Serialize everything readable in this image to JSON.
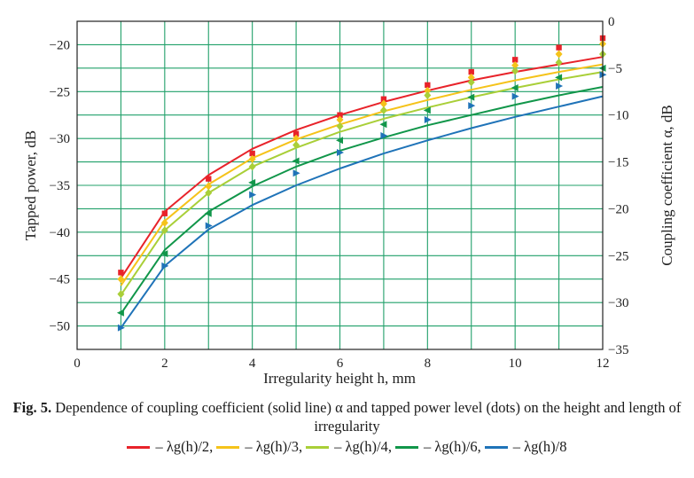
{
  "chart_data": {
    "type": "line",
    "xlabel": "Irregularity height h, mm",
    "ylabel_left": "Tapped power, dB",
    "ylabel_right": "Coupling coefficient α, dB",
    "xlim": [
      0,
      12
    ],
    "ylim_left": [
      -52.5,
      -17.5
    ],
    "ylim_right": [
      -35,
      0
    ],
    "x_ticks": [
      "0",
      "2",
      "4",
      "6",
      "8",
      "10",
      "12"
    ],
    "y_left_ticks": [
      "−20",
      "−25",
      "−30",
      "−35",
      "−40",
      "−45",
      "−50"
    ],
    "y_right_ticks": [
      "0",
      "−5",
      "−10",
      "−15",
      "−20",
      "−25",
      "−30",
      "−35"
    ],
    "grid": true,
    "series": [
      {
        "name": "– λg(h)/2,",
        "color": "#e8232a",
        "marker": "square",
        "line_x": [
          1,
          2,
          3,
          4,
          5,
          6,
          7,
          8,
          9,
          10,
          11,
          12
        ],
        "line_y": [
          -27.4,
          -20.3,
          -16.4,
          -13.6,
          -11.6,
          -10.0,
          -8.6,
          -7.4,
          -6.3,
          -5.4,
          -4.6,
          -3.8
        ],
        "dots_x": [
          1,
          2,
          3,
          4,
          5,
          6,
          7,
          8,
          9,
          10,
          11,
          12
        ],
        "dots_y": [
          -44.3,
          -38.0,
          -34.3,
          -31.6,
          -29.5,
          -27.5,
          -25.8,
          -24.3,
          -22.9,
          -21.6,
          -20.3,
          -19.3
        ]
      },
      {
        "name": "– λg(h)/3,",
        "color": "#f5c31a",
        "marker": "diamond",
        "line_x": [
          1,
          2,
          3,
          4,
          5,
          6,
          7,
          8,
          9,
          10,
          11,
          12
        ],
        "line_y": [
          -28.2,
          -21.3,
          -17.4,
          -14.6,
          -12.6,
          -11.0,
          -9.6,
          -8.4,
          -7.3,
          -6.3,
          -5.4,
          -4.6
        ],
        "dots_x": [
          1,
          2,
          3,
          4,
          5,
          6,
          7,
          8,
          9,
          10,
          11,
          12
        ],
        "dots_y": [
          -45.0,
          -39.0,
          -35.1,
          -32.2,
          -30.0,
          -28.0,
          -26.3,
          -24.9,
          -23.5,
          -22.2,
          -21.0,
          -19.9
        ]
      },
      {
        "name": "– λg(h)/4,",
        "color": "#a9cf38",
        "marker": "diamond",
        "line_x": [
          1,
          2,
          3,
          4,
          5,
          6,
          7,
          8,
          9,
          10,
          11,
          12
        ],
        "line_y": [
          -29.2,
          -22.3,
          -18.3,
          -15.5,
          -13.5,
          -11.8,
          -10.4,
          -9.2,
          -8.1,
          -7.1,
          -6.2,
          -5.4
        ],
        "dots_x": [
          1,
          2,
          3,
          4,
          5,
          6,
          7,
          8,
          9,
          10,
          11,
          12
        ],
        "dots_y": [
          -46.6,
          -39.8,
          -35.8,
          -33.0,
          -30.7,
          -28.7,
          -27.0,
          -25.4,
          -24.0,
          -22.8,
          -21.9,
          -21.0
        ]
      },
      {
        "name": "– λg(h)/6,",
        "color": "#11964a",
        "marker": "triangle-left",
        "line_x": [
          1,
          2,
          3,
          4,
          5,
          6,
          7,
          8,
          9,
          10,
          11,
          12
        ],
        "line_y": [
          -31.2,
          -24.4,
          -20.3,
          -17.6,
          -15.5,
          -13.8,
          -12.4,
          -11.1,
          -10.0,
          -8.9,
          -7.9,
          -7.0
        ],
        "dots_x": [
          1,
          2,
          3,
          4,
          5,
          6,
          7,
          8,
          9,
          10,
          11,
          12
        ],
        "dots_y": [
          -48.6,
          -42.3,
          -38.0,
          -34.7,
          -32.4,
          -30.2,
          -28.5,
          -27.0,
          -25.6,
          -24.6,
          -23.5,
          -22.5
        ]
      },
      {
        "name": "– λg(h)/8",
        "color": "#1f73b8",
        "marker": "triangle-right",
        "line_x": [
          1,
          2,
          3,
          4,
          5,
          6,
          7,
          8,
          9,
          10,
          11,
          12
        ],
        "line_y": [
          -32.7,
          -26.1,
          -22.2,
          -19.6,
          -17.5,
          -15.7,
          -14.1,
          -12.7,
          -11.4,
          -10.2,
          -9.1,
          -8.0
        ],
        "dots_x": [
          1,
          2,
          3,
          4,
          5,
          6,
          7,
          8,
          9,
          10,
          11,
          12
        ],
        "dots_y": [
          -50.2,
          -43.6,
          -39.3,
          -36.0,
          -33.7,
          -31.5,
          -29.7,
          -28.0,
          -26.5,
          -25.5,
          -24.4,
          -23.2
        ]
      }
    ]
  },
  "caption": {
    "fig_label": "Fig. 5.",
    "text": " Dependence of coupling coefficient (solid line) α and tapped power level (dots) on the height and length of irregularity"
  },
  "legend": {
    "items": [
      "– λg(h)/2,",
      "– λg(h)/3,",
      "– λg(h)/4,",
      "– λg(h)/6,",
      "– λg(h)/8"
    ]
  }
}
